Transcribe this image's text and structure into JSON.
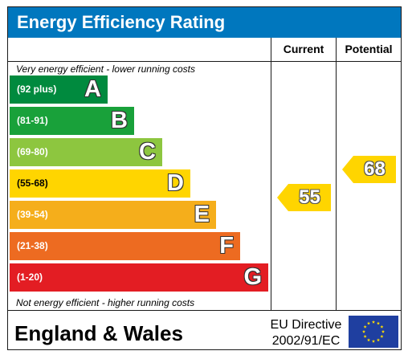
{
  "title": "Energy Efficiency Rating",
  "columns": {
    "current": "Current",
    "potential": "Potential"
  },
  "notes": {
    "top": "Very energy efficient - lower running costs",
    "bottom": "Not energy efficient - higher running costs"
  },
  "footer": {
    "region": "England & Wales",
    "directive_line1": "EU Directive",
    "directive_line2": "2002/91/EC"
  },
  "colors": {
    "header": "#0077be",
    "A": "#008a3e",
    "B": "#19a13a",
    "C": "#8dc63f",
    "D": "#ffd500",
    "E": "#f5ae1b",
    "F": "#ed6b21",
    "G": "#e31d23",
    "current_arrow": "#ffd500",
    "potential_arrow": "#ffd500"
  },
  "chart_data": {
    "type": "bar",
    "bands": [
      {
        "label": "A",
        "range": "(92 plus)"
      },
      {
        "label": "B",
        "range": "(81-91)"
      },
      {
        "label": "C",
        "range": "(69-80)"
      },
      {
        "label": "D",
        "range": "(55-68)"
      },
      {
        "label": "E",
        "range": "(39-54)"
      },
      {
        "label": "F",
        "range": "(21-38)"
      },
      {
        "label": "G",
        "range": "(1-20)"
      }
    ],
    "current": {
      "value": "55",
      "band": "D"
    },
    "potential": {
      "value": "68",
      "band": "D"
    }
  }
}
